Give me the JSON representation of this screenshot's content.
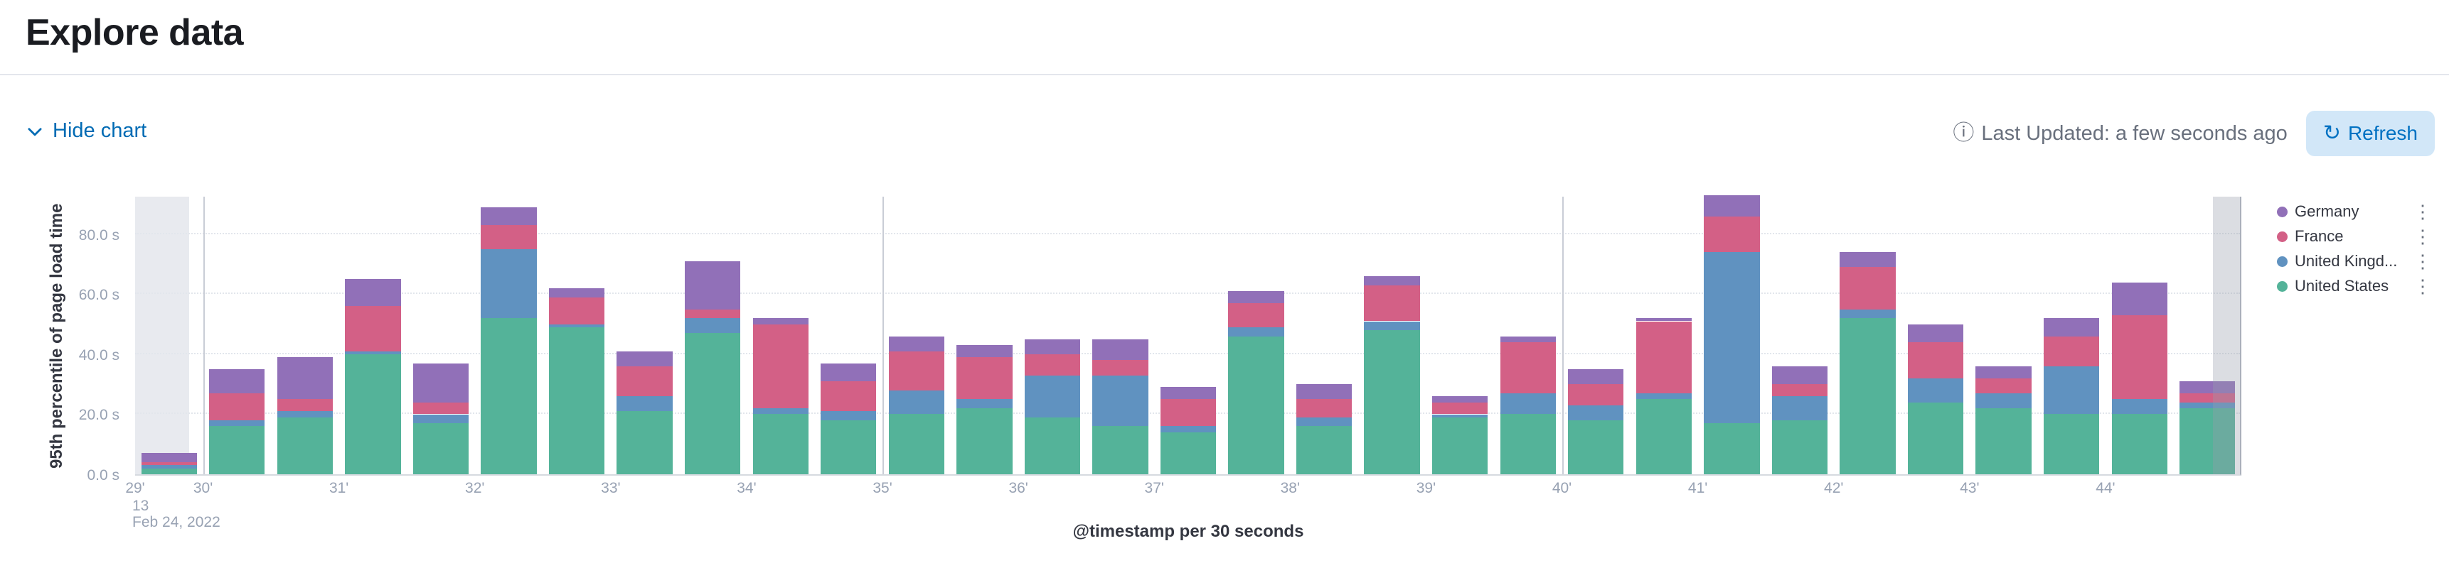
{
  "header": {
    "title": "Explore data"
  },
  "toolbar": {
    "hide_chart_label": "Hide chart",
    "last_updated": "Last Updated: a few seconds ago",
    "refresh_label": "Refresh"
  },
  "icons": {
    "info_icon": "ⓘ",
    "refresh_icon": "↻",
    "legend_menu_icon": "⋮"
  },
  "colors": {
    "link": "#006bb4",
    "refresh_button_bg": "#d2e7f8",
    "refresh_button_text": "#0071c2",
    "muted_text": "#69707d",
    "axis_text": "#98a2b3",
    "axis_title_text": "#343741"
  },
  "chart_data": {
    "type": "bar",
    "stacked": true,
    "title": "",
    "xlabel": "@timestamp per 30 seconds",
    "ylabel": "95th percentile of page load time",
    "ylim": [
      0,
      93
    ],
    "grid": "horizontal-dotted",
    "legend_position": "right",
    "y_ticks": [
      "0.0 s",
      "20.0 s",
      "40.0 s",
      "60.0 s",
      "80.0 s"
    ],
    "y_tick_values": [
      0,
      20,
      40,
      60,
      80
    ],
    "x_ticks": [
      {
        "slot": 0,
        "label": "29'",
        "sub": [
          "13",
          "Feb 24, 2022"
        ]
      },
      {
        "slot": 1,
        "label": "30'"
      },
      {
        "slot": 3,
        "label": "31'"
      },
      {
        "slot": 5,
        "label": "32'"
      },
      {
        "slot": 7,
        "label": "33'"
      },
      {
        "slot": 9,
        "label": "34'"
      },
      {
        "slot": 11,
        "label": "35'"
      },
      {
        "slot": 13,
        "label": "36'"
      },
      {
        "slot": 15,
        "label": "37'"
      },
      {
        "slot": 17,
        "label": "38'"
      },
      {
        "slot": 19,
        "label": "39'"
      },
      {
        "slot": 21,
        "label": "40'"
      },
      {
        "slot": 23,
        "label": "41'"
      },
      {
        "slot": 25,
        "label": "42'"
      },
      {
        "slot": 27,
        "label": "43'"
      },
      {
        "slot": 29,
        "label": "44'"
      }
    ],
    "grid_vlines_slots": [
      1,
      11,
      21
    ],
    "partial_bucket_shading": {
      "left_slot_fraction": 0.8,
      "right_slot_fraction": 0.4
    },
    "series": [
      {
        "name": "United States",
        "color": "#54B399",
        "values": [
          2,
          16,
          19,
          40,
          17,
          52,
          49,
          21,
          47,
          20,
          18,
          20,
          22,
          19,
          16,
          14,
          46,
          16,
          48,
          19,
          20,
          18,
          25,
          17,
          18,
          52,
          24,
          22,
          20,
          20,
          22
        ]
      },
      {
        "name": "United Kingdom",
        "color": "#6092C0",
        "values": [
          1,
          2,
          2,
          1,
          3,
          23,
          1,
          5,
          5,
          2,
          3,
          8,
          3,
          14,
          17,
          2,
          3,
          3,
          3,
          1,
          7,
          5,
          2,
          57,
          8,
          3,
          8,
          5,
          16,
          5,
          2
        ]
      },
      {
        "name": "France",
        "color": "#D36086",
        "values": [
          1,
          9,
          4,
          15,
          4,
          8,
          9,
          10,
          3,
          28,
          10,
          13,
          14,
          7,
          5,
          9,
          8,
          6,
          12,
          4,
          17,
          7,
          24,
          12,
          4,
          14,
          12,
          5,
          10,
          28,
          3
        ]
      },
      {
        "name": "Germany",
        "color": "#9170B8",
        "values": [
          3,
          8,
          14,
          9,
          13,
          6,
          3,
          5,
          16,
          2,
          6,
          5,
          4,
          5,
          7,
          4,
          4,
          5,
          3,
          2,
          2,
          5,
          1,
          7,
          6,
          5,
          6,
          4,
          6,
          11,
          4
        ]
      }
    ],
    "legend": [
      {
        "label": "Germany",
        "color": "#9170B8"
      },
      {
        "label": "France",
        "color": "#D36086"
      },
      {
        "label": "United Kingd...",
        "color": "#6092C0"
      },
      {
        "label": "United States",
        "color": "#54B399"
      }
    ]
  }
}
